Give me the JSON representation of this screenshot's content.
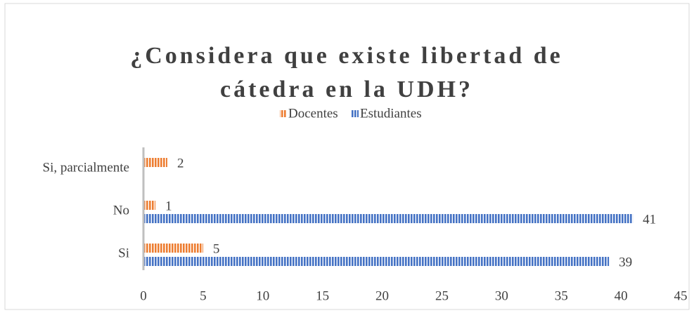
{
  "chart_data": {
    "type": "bar",
    "orientation": "horizontal",
    "title": [
      "¿Considera que existe libertad de",
      "cátedra en la UDH?"
    ],
    "categories": [
      "Si",
      "No",
      "Si, parcialmente"
    ],
    "series": [
      {
        "name": "Docentes",
        "color": "#ed7d31",
        "values": [
          5,
          1,
          2
        ]
      },
      {
        "name": "Estudiantes",
        "color": "#4472c4",
        "values": [
          39,
          41,
          null
        ]
      }
    ],
    "xlim": [
      0,
      45
    ],
    "xticks": [
      0,
      5,
      10,
      15,
      20,
      25,
      30,
      35,
      40,
      45
    ],
    "grid": false,
    "legend": "top"
  }
}
